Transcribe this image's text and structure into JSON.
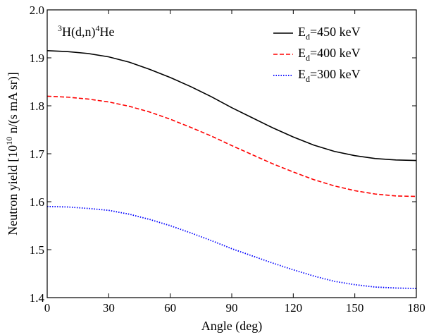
{
  "chart_data": {
    "type": "line",
    "title": "",
    "xlabel": "Angle (deg)",
    "ylabel": {
      "prefix": "Neutron yield [10",
      "exponent": "10",
      "suffix": " n/(s mA sr)]"
    },
    "xlim": [
      0,
      180
    ],
    "ylim": [
      1.4,
      2.0
    ],
    "xticks": [
      0,
      30,
      60,
      90,
      120,
      150,
      180
    ],
    "xtick_labels": [
      "0",
      "30",
      "60",
      "90",
      "120",
      "150",
      "180"
    ],
    "yticks": [
      1.4,
      1.5,
      1.6,
      1.7,
      1.8,
      1.9,
      2.0
    ],
    "ytick_labels": [
      "1.4",
      "1.5",
      "1.6",
      "1.7",
      "1.8",
      "1.9",
      "2.0"
    ],
    "grid": false,
    "legend_position": "top-right",
    "annotation": {
      "pre_sup": "3",
      "part1": "H(d,n)",
      "mid_sup": "4",
      "part2": "He"
    },
    "x": [
      0,
      10,
      20,
      30,
      40,
      50,
      60,
      70,
      80,
      90,
      100,
      110,
      120,
      130,
      140,
      150,
      160,
      170,
      180
    ],
    "series": [
      {
        "name_main": "E",
        "name_sub": "d",
        "name_rest": "=450 keV",
        "color": "#000000",
        "dash": "solid",
        "values": [
          1.915,
          1.913,
          1.909,
          1.902,
          1.891,
          1.876,
          1.859,
          1.84,
          1.819,
          1.796,
          1.775,
          1.754,
          1.735,
          1.718,
          1.705,
          1.696,
          1.69,
          1.687,
          1.686
        ]
      },
      {
        "name_main": "E",
        "name_sub": "d",
        "name_rest": "=400 keV",
        "color": "#ff0000",
        "dash": "dashed",
        "values": [
          1.82,
          1.818,
          1.814,
          1.808,
          1.799,
          1.787,
          1.772,
          1.755,
          1.737,
          1.717,
          1.698,
          1.679,
          1.662,
          1.646,
          1.633,
          1.623,
          1.616,
          1.612,
          1.611
        ]
      },
      {
        "name_main": "E",
        "name_sub": "d",
        "name_rest": "=300 keV",
        "color": "#0000ff",
        "dash": "dotted",
        "values": [
          1.59,
          1.589,
          1.586,
          1.582,
          1.574,
          1.563,
          1.55,
          1.535,
          1.519,
          1.502,
          1.487,
          1.472,
          1.458,
          1.445,
          1.434,
          1.427,
          1.422,
          1.42,
          1.419
        ]
      }
    ]
  }
}
